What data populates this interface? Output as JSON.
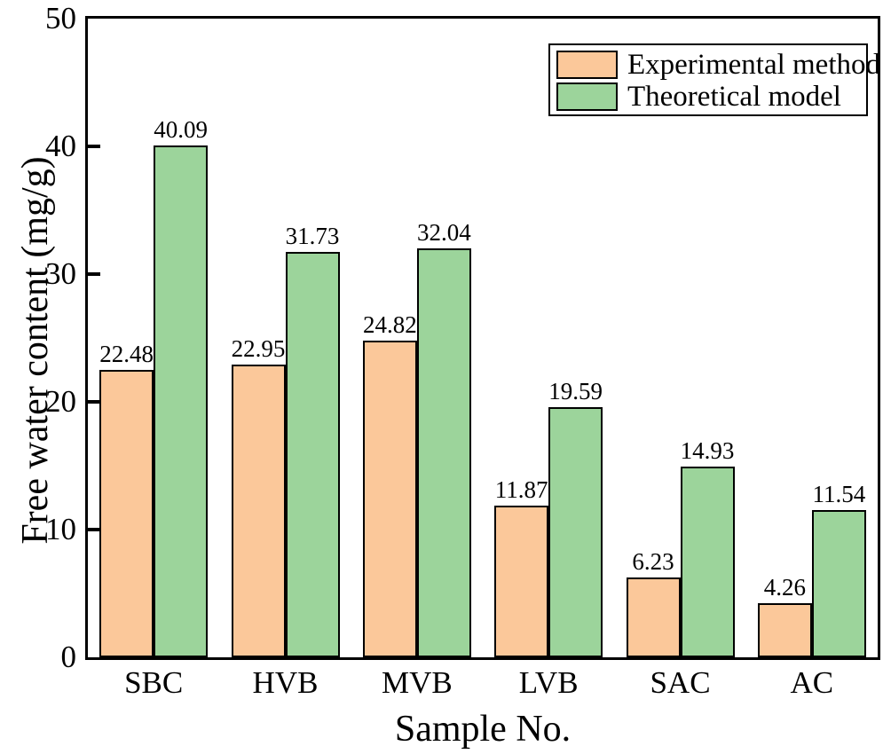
{
  "chart_data": {
    "type": "bar",
    "title": "",
    "categories": [
      "SBC",
      "HVB",
      "MVB",
      "LVB",
      "SAC",
      "AC"
    ],
    "series": [
      {
        "name": "Experimental method",
        "color": "#FBC89A",
        "values": [
          22.48,
          22.95,
          24.82,
          11.87,
          6.23,
          4.26
        ]
      },
      {
        "name": "Theoretical model",
        "color": "#9CD49B",
        "values": [
          40.09,
          31.73,
          32.04,
          19.59,
          14.93,
          11.54
        ]
      }
    ],
    "value_labels": [
      "22.48",
      "22.95",
      "24.82",
      "11.87",
      "6.23",
      "4.26",
      "40.09",
      "31.73",
      "32.04",
      "19.59",
      "14.93",
      "11.54"
    ],
    "xlabel": "Sample No.",
    "ylabel": "Free water content (mg/g)",
    "ylim": [
      0,
      50
    ],
    "yticks": [
      0,
      10,
      20,
      30,
      40,
      50
    ],
    "bar_edge_color": "#000000",
    "tick_direction": "in",
    "grid": false,
    "legend_position": "top-right",
    "legend_border": true
  }
}
